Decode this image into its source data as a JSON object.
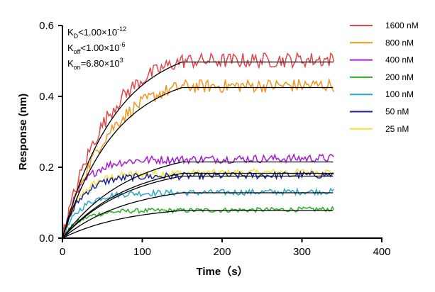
{
  "chart_data": {
    "type": "line",
    "xlabel": "Time（s）",
    "ylabel": "Response (nm)",
    "xlim": [
      0,
      400
    ],
    "ylim": [
      0,
      0.6
    ],
    "xticks": [
      "0",
      "100",
      "200",
      "300",
      "400"
    ],
    "yticks": [
      "0.0",
      "0.2",
      "0.4",
      "0.6"
    ],
    "grid": false,
    "legend_position": "right",
    "association_end_time": 150,
    "experiment_end_time": 340,
    "kinetics": {
      "kd": {
        "base": "K",
        "sub": "D",
        "rest": "<1.00×10",
        "sup": "-12"
      },
      "koff": {
        "base": "K",
        "sub": "off",
        "rest": "<1.00×10",
        "sup": "-6"
      },
      "kon": {
        "base": "K",
        "sub": "on",
        "rest": "=6.80×10",
        "sup": "3"
      }
    },
    "series": [
      {
        "name": "1600 nM",
        "color": "#e0474c",
        "plateau": 0.5,
        "fit_plateau": 0.497
      },
      {
        "name": "800 nM",
        "color": "#f0961c",
        "plateau": 0.428,
        "fit_plateau": 0.425
      },
      {
        "name": "400 nM",
        "color": "#a51bd0",
        "plateau": 0.222,
        "fit_plateau": 0.215
      },
      {
        "name": "200 nM",
        "color": "#27b024",
        "plateau": 0.078,
        "fit_plateau": 0.078
      },
      {
        "name": "100 nM",
        "color": "#2aa6c8",
        "plateau": 0.128,
        "fit_plateau": 0.128
      },
      {
        "name": "50 nM",
        "color": "#1d22a8",
        "plateau": 0.175,
        "fit_plateau": 0.175
      },
      {
        "name": "25 nM",
        "color": "#f5e330",
        "plateau": 0.183,
        "fit_plateau": 0.183
      }
    ]
  }
}
